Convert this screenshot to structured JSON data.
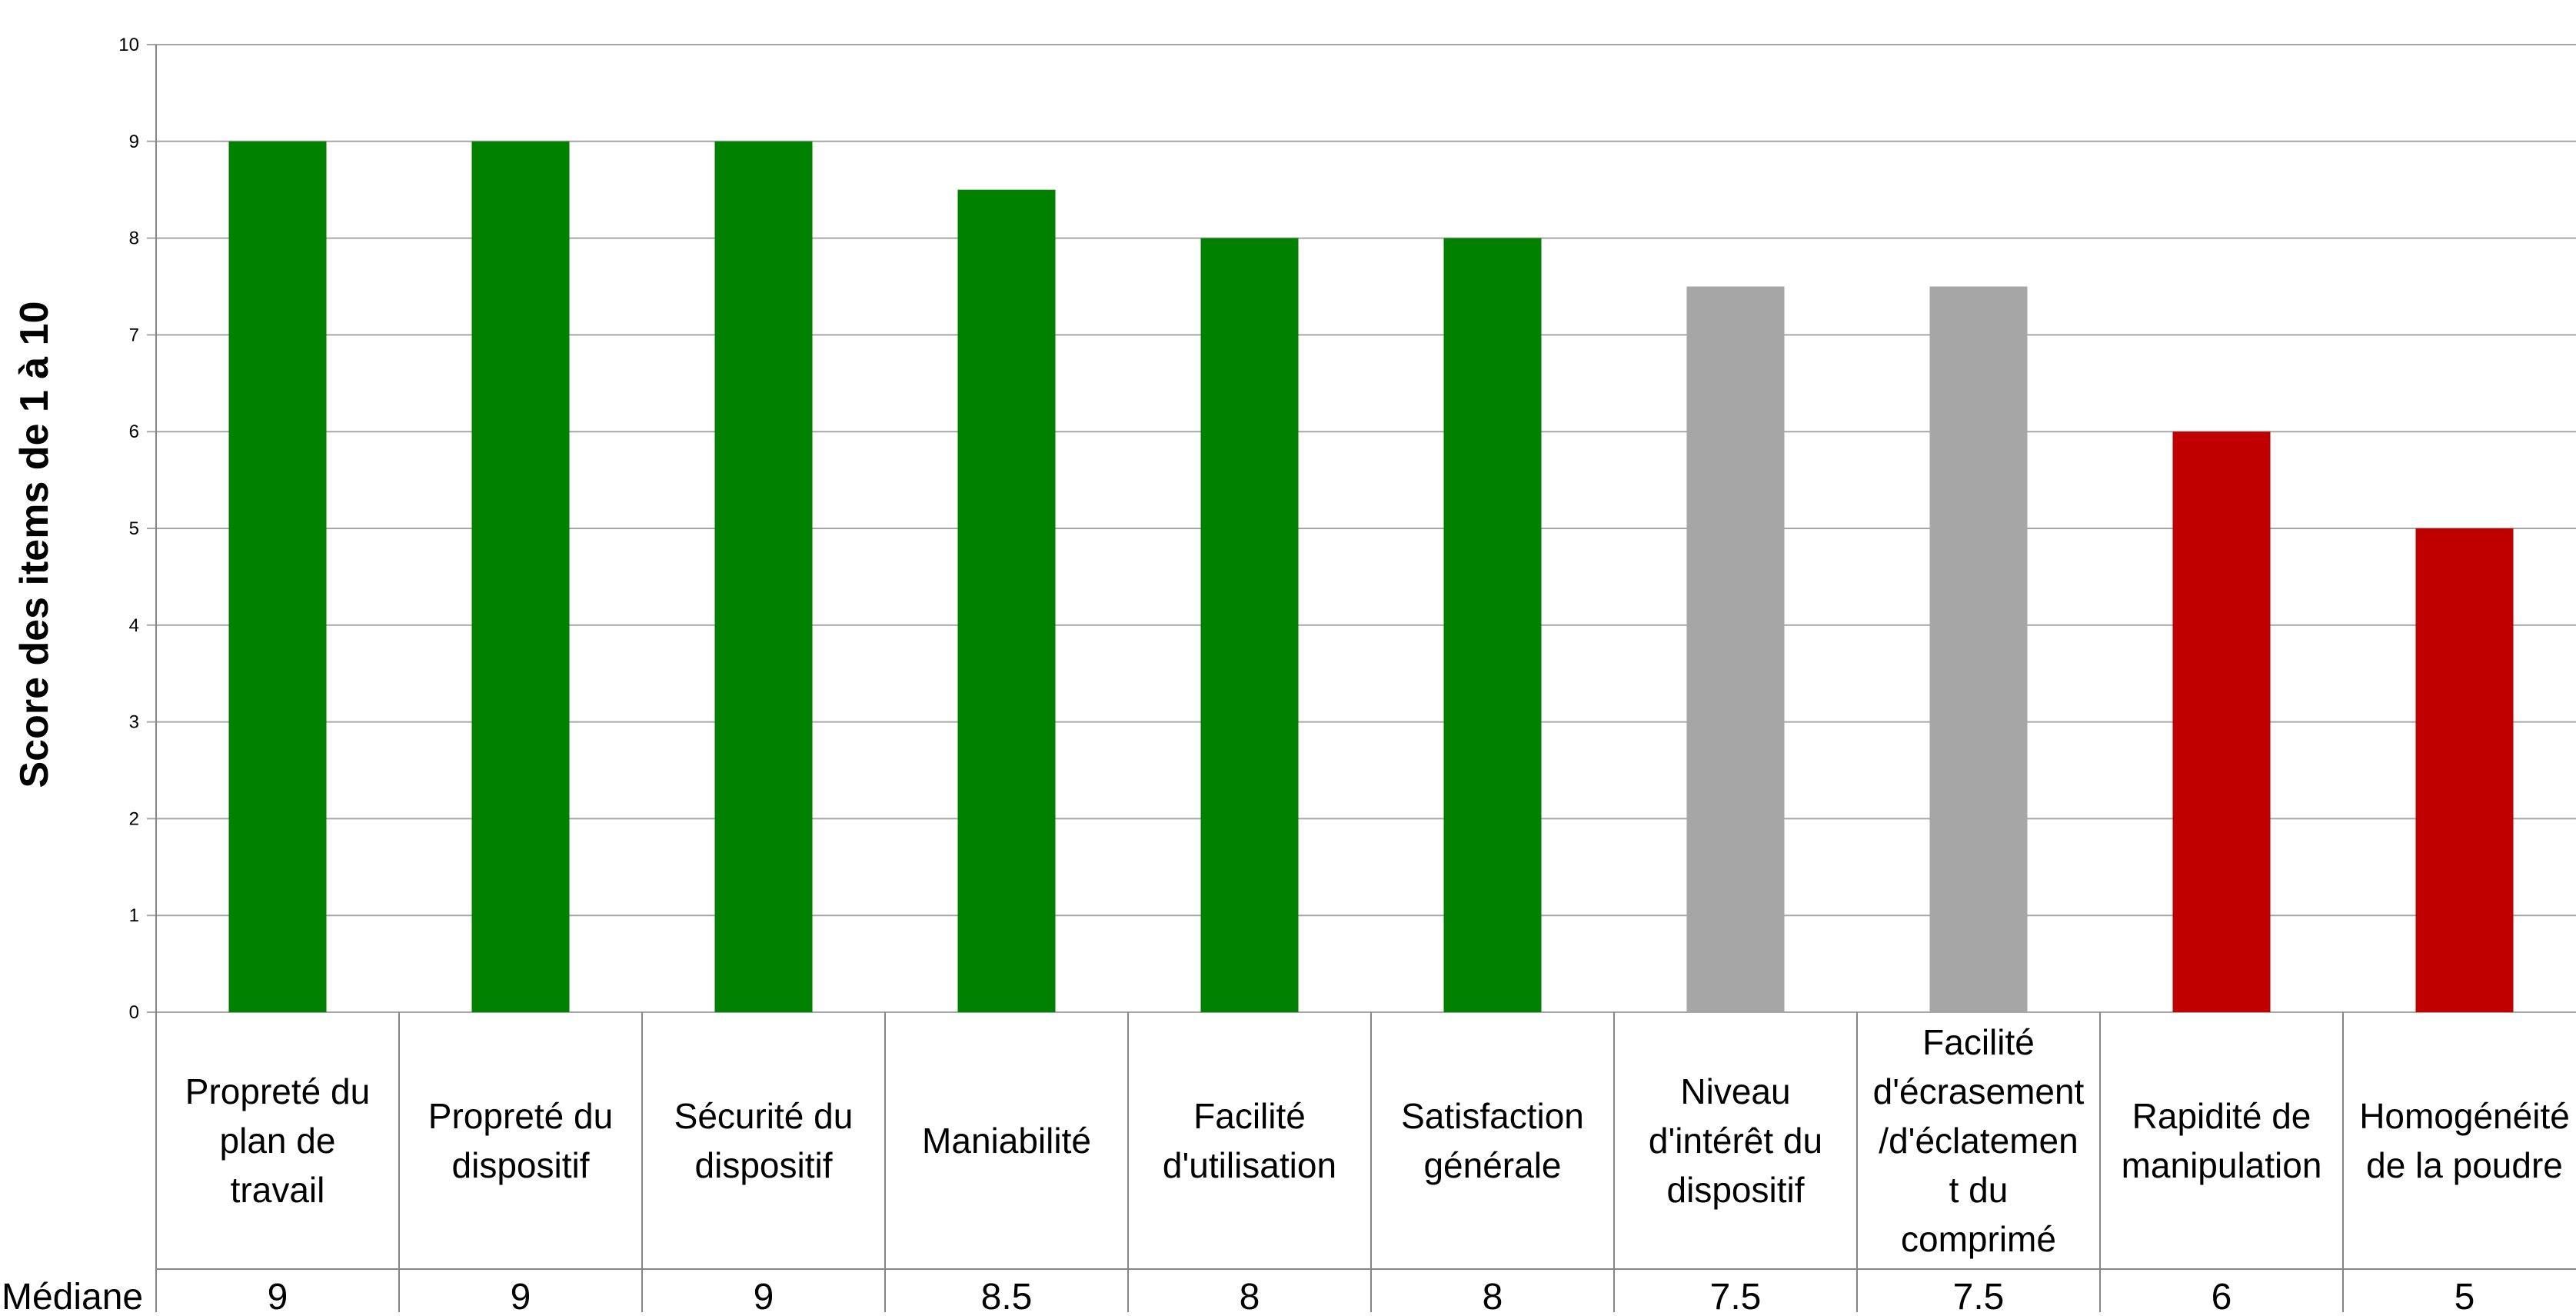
{
  "chart_data": {
    "type": "bar",
    "ylabel": "Score des items de 1 à 10",
    "ylim": [
      0,
      10
    ],
    "yticks": [
      "0",
      "1",
      "2",
      "3",
      "4",
      "5",
      "6",
      "7",
      "8",
      "9",
      "10"
    ],
    "grid": true,
    "categories": [
      "Propreté du plan de travail",
      "Propreté du dispositif",
      "Sécurité du dispositif",
      "Maniabilité",
      "Facilité d'utilisation",
      "Satisfaction générale",
      "Niveau d'intérêt du dispositif",
      "Facilité d'écrasement /d'éclatement du comprimé",
      "Rapidité de manipulation",
      "Homogénéité de la poudre"
    ],
    "category_lines": [
      [
        "Propreté du",
        "plan de",
        "travail"
      ],
      [
        "Propreté du",
        "dispositif"
      ],
      [
        "Sécurité du",
        "dispositif"
      ],
      [
        "Maniabilité"
      ],
      [
        "Facilité",
        "d'utilisation"
      ],
      [
        "Satisfaction",
        "générale"
      ],
      [
        "Niveau",
        "d'intérêt du",
        "dispositif"
      ],
      [
        "Facilité",
        "d'écrasement",
        "/d'éclatemen",
        "t du",
        "comprimé"
      ],
      [
        "Rapidité de",
        "manipulation"
      ],
      [
        "Homogénéité",
        "de la poudre"
      ]
    ],
    "values": [
      9,
      9,
      9,
      8.5,
      8,
      8,
      7.5,
      7.5,
      6,
      5
    ],
    "bar_colors": [
      "#008000",
      "#008000",
      "#008000",
      "#008000",
      "#008000",
      "#008000",
      "#a6a6a6",
      "#a6a6a6",
      "#c00000",
      "#c00000"
    ],
    "table_row_label": "Médiane",
    "table_values": [
      "9",
      "9",
      "9",
      "8.5",
      "8",
      "8",
      "7.5",
      "7.5",
      "6",
      "5"
    ]
  },
  "colors": {
    "gridline": "#a6a6a6",
    "axis": "#868686",
    "text": "#000000"
  }
}
